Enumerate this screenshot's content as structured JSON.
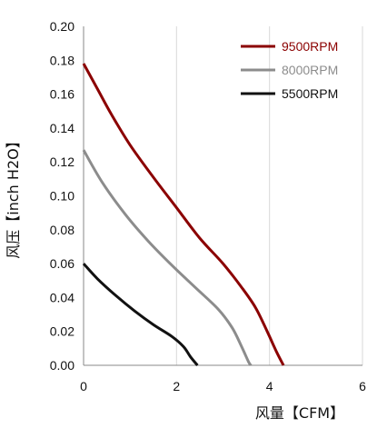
{
  "chart_data": {
    "type": "line",
    "xlabel": "风量【CFM】",
    "ylabel": "风压【inch H2O】",
    "xlim": [
      0,
      6
    ],
    "ylim": [
      0,
      0.2
    ],
    "x_ticks": [
      "0",
      "2",
      "4",
      "6"
    ],
    "y_ticks": [
      "0.00",
      "0.02",
      "0.04",
      "0.06",
      "0.08",
      "0.10",
      "0.12",
      "0.14",
      "0.16",
      "0.18",
      "0.20"
    ],
    "grid": "vertical",
    "legend_position": "top-right",
    "series": [
      {
        "name": "9500RPM",
        "color": "#8b0000",
        "points": [
          [
            0,
            0.178
          ],
          [
            0.3,
            0.163
          ],
          [
            0.6,
            0.148
          ],
          [
            1.0,
            0.13
          ],
          [
            1.5,
            0.111
          ],
          [
            2.0,
            0.093
          ],
          [
            2.5,
            0.075
          ],
          [
            3.0,
            0.06
          ],
          [
            3.4,
            0.046
          ],
          [
            3.7,
            0.034
          ],
          [
            3.95,
            0.02
          ],
          [
            4.15,
            0.008
          ],
          [
            4.3,
            0.0
          ]
        ]
      },
      {
        "name": "8000RPM",
        "color": "#8c8c8c",
        "points": [
          [
            0,
            0.127
          ],
          [
            0.4,
            0.108
          ],
          [
            0.9,
            0.089
          ],
          [
            1.4,
            0.073
          ],
          [
            1.9,
            0.059
          ],
          [
            2.4,
            0.046
          ],
          [
            2.9,
            0.033
          ],
          [
            3.2,
            0.022
          ],
          [
            3.4,
            0.011
          ],
          [
            3.55,
            0.002
          ],
          [
            3.6,
            0.0
          ]
        ]
      },
      {
        "name": "5500RPM",
        "color": "#111111",
        "points": [
          [
            0,
            0.06
          ],
          [
            0.3,
            0.051
          ],
          [
            0.7,
            0.041
          ],
          [
            1.1,
            0.032
          ],
          [
            1.5,
            0.024
          ],
          [
            1.9,
            0.017
          ],
          [
            2.15,
            0.011
          ],
          [
            2.3,
            0.005
          ],
          [
            2.45,
            0.0
          ]
        ]
      }
    ]
  }
}
